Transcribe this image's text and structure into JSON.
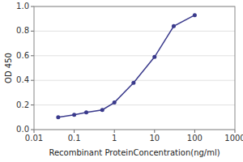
{
  "chart_data": {
    "type": "line",
    "x": [
      0.04,
      0.1,
      0.2,
      0.5,
      1,
      3,
      10,
      30,
      100
    ],
    "values": [
      0.1,
      0.12,
      0.14,
      0.16,
      0.22,
      0.38,
      0.59,
      0.84,
      0.93
    ],
    "color": "#3a3a8c",
    "marker": "circle",
    "x_label": "Recombinant ProteinConcentration(ng/ml)",
    "y_label": "OD 450",
    "log": "x",
    "xlim": [
      0.01,
      1000
    ],
    "ylim": [
      0,
      1.0
    ],
    "xticks": [
      0.01,
      0.1,
      1,
      10,
      100,
      1000
    ],
    "yticks": [
      {
        "value": 0,
        "label": "0.0"
      },
      0.2,
      0.4,
      0.6,
      0.8,
      {
        "value": 1,
        "label": "1.0"
      }
    ],
    "grid": true
  }
}
